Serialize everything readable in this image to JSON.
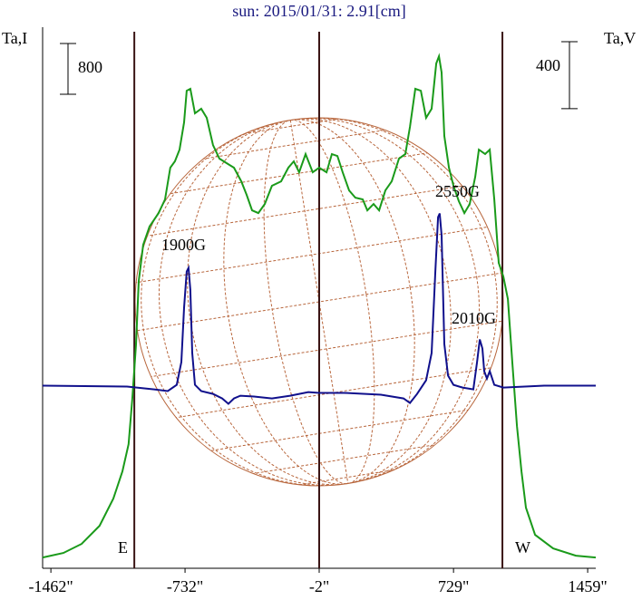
{
  "chart_data": {
    "type": "line",
    "title": "sun: 2015/01/31: 2.91[cm]",
    "ylabel": "Ta,I",
    "y2label": "Ta,V",
    "xlim": [
      -1507,
      1503
    ],
    "ylim": [
      -170,
      8360
    ],
    "y2lim": [
      -1090,
      2140
    ],
    "xticks": [
      {
        "value": -1462,
        "label": "-1462\""
      },
      {
        "value": -732,
        "label": "-732\""
      },
      {
        "value": -2,
        "label": "-2\""
      },
      {
        "value": 729,
        "label": "729\""
      },
      {
        "value": 1459,
        "label": "1459\""
      }
    ],
    "vertical_lines": [
      -1008,
      -2,
      995
    ],
    "limb_labels": [
      "E",
      "W"
    ],
    "scale_bars": [
      {
        "value": 800
      },
      {
        "value": 400,
        "axis": "y2"
      }
    ],
    "annotations": [
      "1900G",
      "2550G",
      "2010G"
    ],
    "series": [
      {
        "name": "I",
        "color": "#1a9a1a",
        "x": [
          -1507,
          -1394,
          -1295,
          -1197,
          -1122,
          -1073,
          -1039,
          -1019,
          -999,
          -984,
          -960,
          -925,
          -876,
          -841,
          -812,
          -787,
          -762,
          -737,
          -723,
          -703,
          -678,
          -644,
          -614,
          -580,
          -545,
          -505,
          -466,
          -426,
          -397,
          -367,
          -333,
          -298,
          -259,
          -209,
          -170,
          -140,
          -111,
          -76,
          -37,
          -2,
          38,
          67,
          97,
          126,
          161,
          195,
          235,
          260,
          294,
          324,
          358,
          393,
          432,
          467,
          492,
          521,
          551,
          580,
          610,
          635,
          650,
          664,
          679,
          704,
          729,
          758,
          788,
          817,
          847,
          867,
          901,
          926,
          951,
          975,
          1000,
          1025,
          1049,
          1074,
          1099,
          1123,
          1173,
          1271,
          1395,
          1503
        ],
        "values": [
          0,
          71,
          214,
          500,
          929,
          1358,
          1786,
          2500,
          3358,
          4358,
          4930,
          5216,
          5430,
          5645,
          6145,
          6245,
          6430,
          6859,
          7359,
          7388,
          7002,
          7074,
          6931,
          6502,
          6288,
          6216,
          6145,
          5930,
          5716,
          5473,
          5430,
          5573,
          5859,
          5930,
          6145,
          6245,
          6073,
          6359,
          6073,
          6145,
          6073,
          6359,
          6330,
          6073,
          5787,
          5673,
          5645,
          5473,
          5573,
          5473,
          5787,
          5930,
          6288,
          6359,
          6788,
          7388,
          7359,
          6931,
          7074,
          7788,
          7902,
          7645,
          6645,
          6145,
          5859,
          5616,
          5430,
          5573,
          6002,
          6430,
          6359,
          6430,
          5645,
          4644,
          4430,
          4073,
          3072,
          2072,
          1358,
          786,
          357,
          143,
          29,
          0
        ]
      },
      {
        "name": "V",
        "color": "#10108c",
        "axis": "y2",
        "x": [
          -1507,
          -1048,
          -900,
          -826,
          -777,
          -752,
          -737,
          -723,
          -713,
          -703,
          -693,
          -678,
          -644,
          -580,
          -530,
          -496,
          -466,
          -431,
          -357,
          -259,
          -160,
          -61,
          -2,
          136,
          334,
          457,
          492,
          531,
          580,
          610,
          630,
          645,
          654,
          664,
          679,
          699,
          729,
          778,
          837,
          857,
          872,
          886,
          896,
          911,
          926,
          951,
          1000,
          1222,
          1503
        ],
        "values": [
          0,
          -5,
          -22,
          -32,
          5,
          141,
          465,
          682,
          703,
          573,
          195,
          5,
          -32,
          -49,
          -76,
          -108,
          -76,
          -60,
          -65,
          -76,
          -60,
          -38,
          -43,
          -43,
          -54,
          -76,
          -103,
          -49,
          32,
          195,
          682,
          1006,
          1028,
          898,
          249,
          60,
          5,
          -11,
          -22,
          141,
          276,
          222,
          87,
          43,
          87,
          5,
          -11,
          0,
          0
        ]
      }
    ]
  }
}
